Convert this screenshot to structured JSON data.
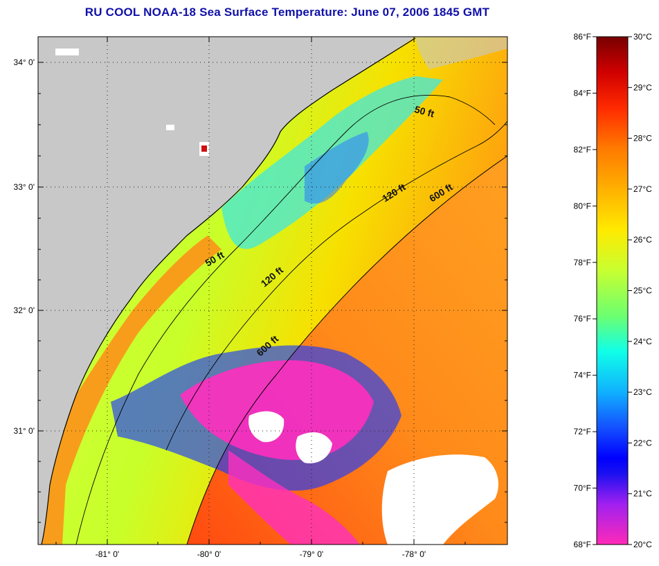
{
  "title": "RU COOL  NOAA-18  Sea Surface Temperature:  June 07, 2006 1845 GMT",
  "map": {
    "lat_ticks": [
      "34° 0'",
      "33° 0'",
      "32° 0'",
      "31° 0'"
    ],
    "lon_ticks": [
      "-81° 0'",
      "-80° 0'",
      "-79° 0'",
      "-78° 0'"
    ],
    "contour_labels": {
      "c50a": "50 ft",
      "c50b": "50 ft",
      "c120a": "120 ft",
      "c120b": "120 ft",
      "c600a": "600 ft",
      "c600b": "600 ft"
    },
    "colors": {
      "land": "#c8c8c8",
      "cloud": "#ffffff",
      "cold": "#ff2fbf",
      "warm": "#ff7a10"
    }
  },
  "colorbar": {
    "fahrenheit": [
      "86°F",
      "84°F",
      "82°F",
      "80°F",
      "78°F",
      "76°F",
      "74°F",
      "72°F",
      "70°F",
      "68°F"
    ],
    "celsius": [
      "30°C",
      "29°C",
      "28°C",
      "27°C",
      "26°C",
      "25°C",
      "24°C",
      "23°C",
      "22°C",
      "21°C",
      "20°C"
    ]
  }
}
